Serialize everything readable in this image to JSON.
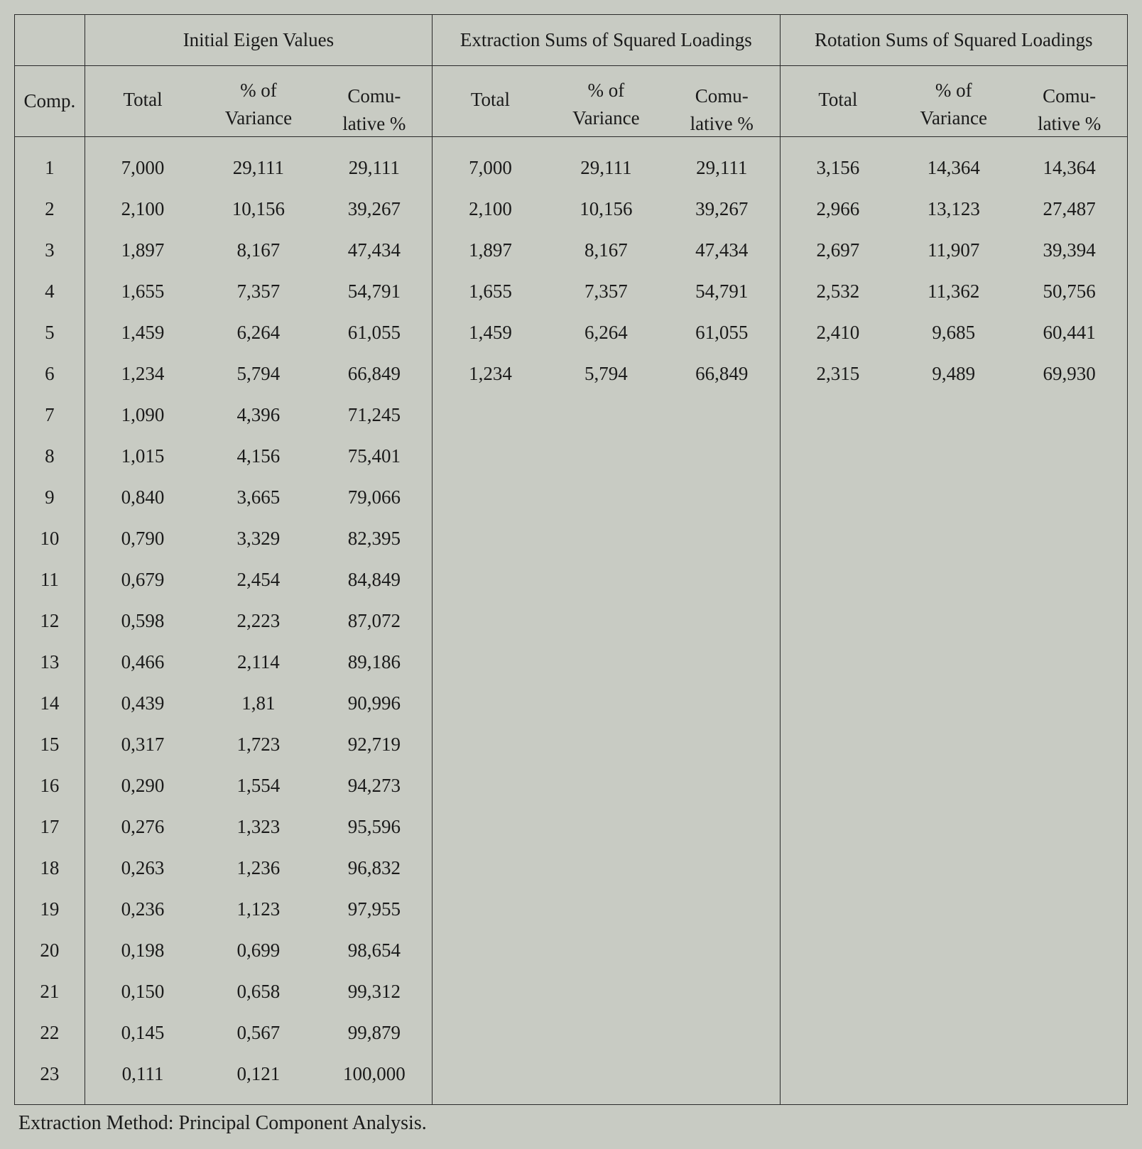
{
  "table": {
    "header_groups": {
      "comp": "Comp.",
      "initial": "Initial Eigen Values",
      "extraction": "Extraction Sums of Squared Loadings",
      "rotation": "Rotation Sums of Squared Loadings"
    },
    "sub_headers": {
      "total": "Total",
      "pct_line1": "% of",
      "pct_line2": "Variance",
      "cum_line1": "Comu-",
      "cum_line2": "lative %"
    },
    "colors": {
      "background": "#c8cbc3",
      "border": "#2a2a2a",
      "text": "#1a1a1a"
    },
    "fonts": {
      "family": "Times New Roman",
      "body_size_pt": 20,
      "footnote_size_pt": 21
    },
    "column_widths_pct": {
      "comp": 6.3,
      "data_each": 10.41
    },
    "rows": [
      {
        "comp": "1",
        "i_total": "7,000",
        "i_pct": "29,111",
        "i_cum": "29,111",
        "e_total": "7,000",
        "e_pct": "29,111",
        "e_cum": "29,111",
        "r_total": "3,156",
        "r_pct": "14,364",
        "r_cum": "14,364"
      },
      {
        "comp": "2",
        "i_total": "2,100",
        "i_pct": "10,156",
        "i_cum": "39,267",
        "e_total": "2,100",
        "e_pct": "10,156",
        "e_cum": "39,267",
        "r_total": "2,966",
        "r_pct": "13,123",
        "r_cum": "27,487"
      },
      {
        "comp": "3",
        "i_total": "1,897",
        "i_pct": "8,167",
        "i_cum": "47,434",
        "e_total": "1,897",
        "e_pct": "8,167",
        "e_cum": "47,434",
        "r_total": "2,697",
        "r_pct": "11,907",
        "r_cum": "39,394"
      },
      {
        "comp": "4",
        "i_total": "1,655",
        "i_pct": "7,357",
        "i_cum": "54,791",
        "e_total": "1,655",
        "e_pct": "7,357",
        "e_cum": "54,791",
        "r_total": "2,532",
        "r_pct": "11,362",
        "r_cum": "50,756"
      },
      {
        "comp": "5",
        "i_total": "1,459",
        "i_pct": "6,264",
        "i_cum": "61,055",
        "e_total": "1,459",
        "e_pct": "6,264",
        "e_cum": "61,055",
        "r_total": "2,410",
        "r_pct": "9,685",
        "r_cum": "60,441"
      },
      {
        "comp": "6",
        "i_total": "1,234",
        "i_pct": "5,794",
        "i_cum": "66,849",
        "e_total": "1,234",
        "e_pct": "5,794",
        "e_cum": "66,849",
        "r_total": "2,315",
        "r_pct": "9,489",
        "r_cum": "69,930"
      },
      {
        "comp": "7",
        "i_total": "1,090",
        "i_pct": "4,396",
        "i_cum": "71,245",
        "e_total": "",
        "e_pct": "",
        "e_cum": "",
        "r_total": "",
        "r_pct": "",
        "r_cum": ""
      },
      {
        "comp": "8",
        "i_total": "1,015",
        "i_pct": "4,156",
        "i_cum": "75,401",
        "e_total": "",
        "e_pct": "",
        "e_cum": "",
        "r_total": "",
        "r_pct": "",
        "r_cum": ""
      },
      {
        "comp": "9",
        "i_total": "0,840",
        "i_pct": "3,665",
        "i_cum": "79,066",
        "e_total": "",
        "e_pct": "",
        "e_cum": "",
        "r_total": "",
        "r_pct": "",
        "r_cum": ""
      },
      {
        "comp": "10",
        "i_total": "0,790",
        "i_pct": "3,329",
        "i_cum": "82,395",
        "e_total": "",
        "e_pct": "",
        "e_cum": "",
        "r_total": "",
        "r_pct": "",
        "r_cum": ""
      },
      {
        "comp": "11",
        "i_total": "0,679",
        "i_pct": "2,454",
        "i_cum": "84,849",
        "e_total": "",
        "e_pct": "",
        "e_cum": "",
        "r_total": "",
        "r_pct": "",
        "r_cum": ""
      },
      {
        "comp": "12",
        "i_total": "0,598",
        "i_pct": "2,223",
        "i_cum": "87,072",
        "e_total": "",
        "e_pct": "",
        "e_cum": "",
        "r_total": "",
        "r_pct": "",
        "r_cum": ""
      },
      {
        "comp": "13",
        "i_total": "0,466",
        "i_pct": "2,114",
        "i_cum": "89,186",
        "e_total": "",
        "e_pct": "",
        "e_cum": "",
        "r_total": "",
        "r_pct": "",
        "r_cum": ""
      },
      {
        "comp": "14",
        "i_total": "0,439",
        "i_pct": "1,81",
        "i_cum": "90,996",
        "e_total": "",
        "e_pct": "",
        "e_cum": "",
        "r_total": "",
        "r_pct": "",
        "r_cum": ""
      },
      {
        "comp": "15",
        "i_total": "0,317",
        "i_pct": "1,723",
        "i_cum": "92,719",
        "e_total": "",
        "e_pct": "",
        "e_cum": "",
        "r_total": "",
        "r_pct": "",
        "r_cum": ""
      },
      {
        "comp": "16",
        "i_total": "0,290",
        "i_pct": "1,554",
        "i_cum": "94,273",
        "e_total": "",
        "e_pct": "",
        "e_cum": "",
        "r_total": "",
        "r_pct": "",
        "r_cum": ""
      },
      {
        "comp": "17",
        "i_total": "0,276",
        "i_pct": "1,323",
        "i_cum": "95,596",
        "e_total": "",
        "e_pct": "",
        "e_cum": "",
        "r_total": "",
        "r_pct": "",
        "r_cum": ""
      },
      {
        "comp": "18",
        "i_total": "0,263",
        "i_pct": "1,236",
        "i_cum": "96,832",
        "e_total": "",
        "e_pct": "",
        "e_cum": "",
        "r_total": "",
        "r_pct": "",
        "r_cum": ""
      },
      {
        "comp": "19",
        "i_total": "0,236",
        "i_pct": "1,123",
        "i_cum": "97,955",
        "e_total": "",
        "e_pct": "",
        "e_cum": "",
        "r_total": "",
        "r_pct": "",
        "r_cum": ""
      },
      {
        "comp": "20",
        "i_total": "0,198",
        "i_pct": "0,699",
        "i_cum": "98,654",
        "e_total": "",
        "e_pct": "",
        "e_cum": "",
        "r_total": "",
        "r_pct": "",
        "r_cum": ""
      },
      {
        "comp": "21",
        "i_total": "0,150",
        "i_pct": "0,658",
        "i_cum": "99,312",
        "e_total": "",
        "e_pct": "",
        "e_cum": "",
        "r_total": "",
        "r_pct": "",
        "r_cum": ""
      },
      {
        "comp": "22",
        "i_total": "0,145",
        "i_pct": "0,567",
        "i_cum": "99,879",
        "e_total": "",
        "e_pct": "",
        "e_cum": "",
        "r_total": "",
        "r_pct": "",
        "r_cum": ""
      },
      {
        "comp": "23",
        "i_total": "0,111",
        "i_pct": "0,121",
        "i_cum": "100,000",
        "e_total": "",
        "e_pct": "",
        "e_cum": "",
        "r_total": "",
        "r_pct": "",
        "r_cum": ""
      }
    ],
    "footnote": "Extraction Method: Principal Component Analysis."
  }
}
